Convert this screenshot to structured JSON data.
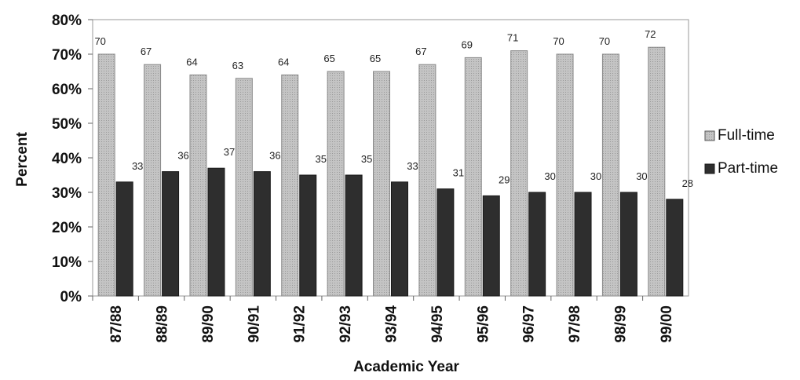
{
  "chart_data": {
    "type": "bar",
    "xlabel": "Academic Year",
    "ylabel": "Percent",
    "ylim": [
      0,
      80
    ],
    "yticks": [
      "0%",
      "10%",
      "20%",
      "30%",
      "40%",
      "50%",
      "60%",
      "70%",
      "80%"
    ],
    "categories": [
      "87/88",
      "88/89",
      "89/90",
      "90/91",
      "91/92",
      "92/93",
      "93/94",
      "94/95",
      "95/96",
      "96/97",
      "97/98",
      "98/99",
      "99/00"
    ],
    "series": [
      {
        "name": "Full-time",
        "values": [
          70,
          67,
          64,
          63,
          64,
          65,
          65,
          67,
          69,
          71,
          70,
          70,
          72
        ],
        "color": "#bdbdbd"
      },
      {
        "name": "Part-time",
        "values": [
          33,
          36,
          37,
          36,
          35,
          35,
          33,
          31,
          29,
          30,
          30,
          30,
          28
        ],
        "color": "#2e2e2e"
      }
    ],
    "legend": "right",
    "data_labels": true,
    "grid": false
  }
}
